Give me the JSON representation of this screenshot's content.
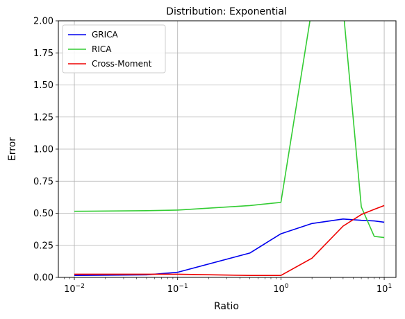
{
  "chart_data": {
    "type": "line",
    "title": "Distribution: Exponential",
    "xlabel": "Ratio",
    "ylabel": "Error",
    "xscale": "log",
    "xlim": [
      0.007,
      13
    ],
    "ylim": [
      0,
      2.0
    ],
    "grid": true,
    "legend": "top-left",
    "xticks": [
      {
        "value": 0.01,
        "base": "10",
        "exp": "−2"
      },
      {
        "value": 0.1,
        "base": "10",
        "exp": "−1"
      },
      {
        "value": 1,
        "base": "10",
        "exp": "0"
      },
      {
        "value": 10,
        "base": "10",
        "exp": "1"
      }
    ],
    "yticks": [
      "0.00",
      "0.25",
      "0.50",
      "0.75",
      "1.00",
      "1.25",
      "1.50",
      "1.75",
      "2.00"
    ],
    "series": [
      {
        "name": "GRICA",
        "color": "#0000ee",
        "x": [
          0.01,
          0.05,
          0.1,
          0.5,
          1,
          2,
          4,
          6,
          8,
          10
        ],
        "y": [
          0.015,
          0.02,
          0.04,
          0.19,
          0.34,
          0.42,
          0.455,
          0.445,
          0.44,
          0.43
        ]
      },
      {
        "name": "RICA",
        "color": "#33cc33",
        "x": [
          0.01,
          0.05,
          0.1,
          0.5,
          1,
          2,
          4,
          6,
          8,
          10
        ],
        "y": [
          0.515,
          0.52,
          0.525,
          0.56,
          0.585,
          2.1,
          2.1,
          0.55,
          0.32,
          0.31
        ]
      },
      {
        "name": "Cross-Moment",
        "color": "#ee0000",
        "x": [
          0.01,
          0.05,
          0.1,
          0.5,
          1,
          2,
          4,
          6,
          8,
          10
        ],
        "y": [
          0.025,
          0.025,
          0.025,
          0.015,
          0.015,
          0.15,
          0.4,
          0.49,
          0.53,
          0.56
        ]
      }
    ]
  }
}
